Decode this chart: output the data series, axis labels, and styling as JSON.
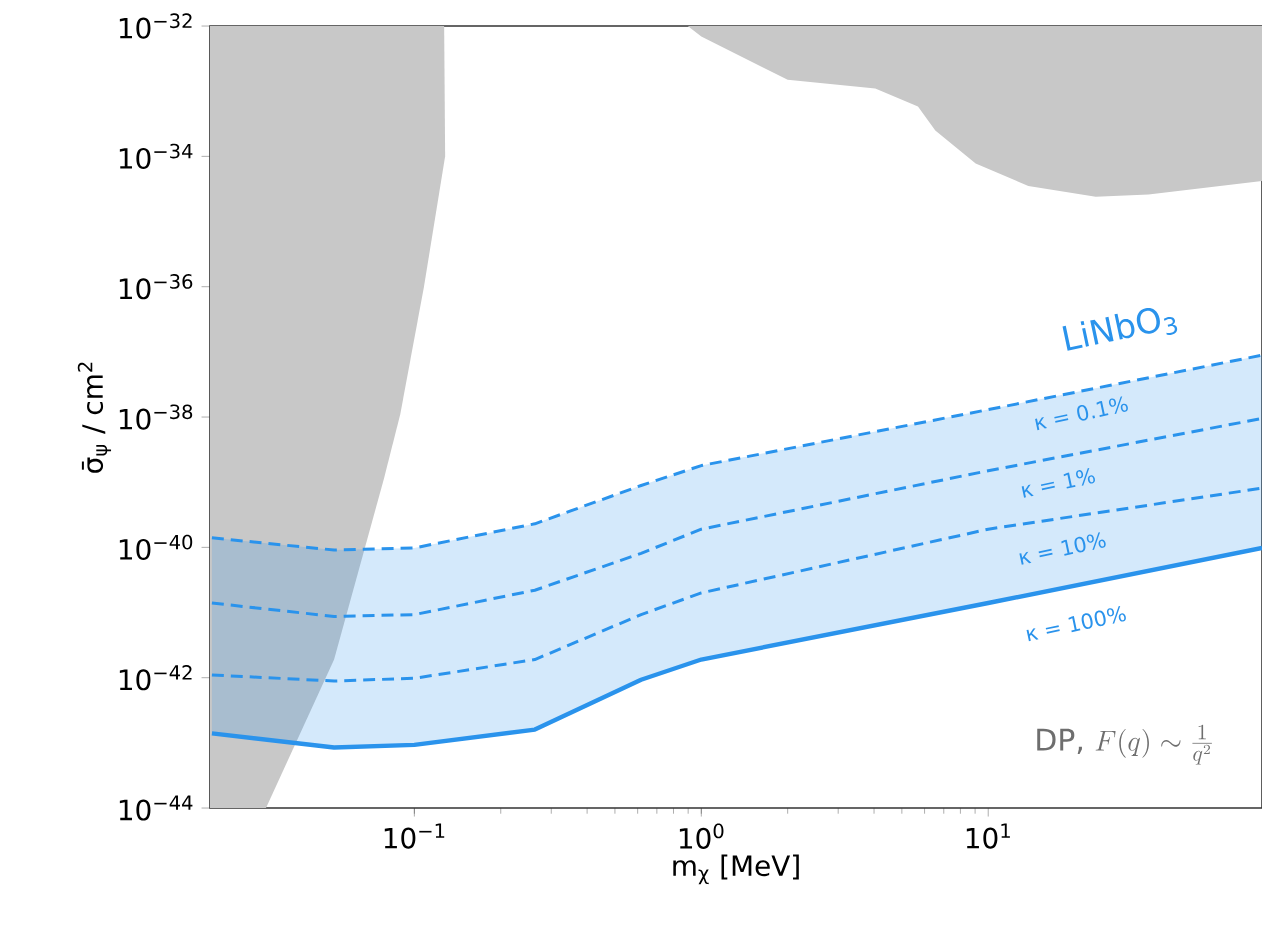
{
  "chart_data": {
    "type": "line",
    "xlabel": "m$_{χ}$ [MeV]",
    "ylabel": "σ̄$_{ψ}$ / cm$^{2}$",
    "log": "xy",
    "xlim": [
      0.0194,
      90
    ],
    "ylim": [
      1e-44,
      1e-32
    ],
    "xticks": [
      {
        "value": 0.1,
        "label": "10$^{−1}$"
      },
      {
        "value": 1,
        "label": "10$^{0}$"
      },
      {
        "value": 10,
        "label": "10$^{1}$"
      }
    ],
    "yticks": [
      {
        "value": 1e-44,
        "label": "10$^{−44}$"
      },
      {
        "value": 1e-42,
        "label": "10$^{−42}$"
      },
      {
        "value": 1e-40,
        "label": "10$^{−40}$"
      },
      {
        "value": 1e-38,
        "label": "10$^{−38}$"
      },
      {
        "value": 1e-36,
        "label": "10$^{−36}$"
      },
      {
        "value": 1e-34,
        "label": "10$^{−34}$"
      },
      {
        "value": 1e-32,
        "label": "10$^{−32}$"
      }
    ],
    "x": [
      0.0197,
      0.0525,
      0.1,
      0.263,
      0.617,
      1,
      10,
      90
    ],
    "series": [
      {
        "name": "κ = 0.1%",
        "color": "#2a93ec",
        "line_style": "dashed",
        "values": [
          1.4e-40,
          9.1e-41,
          9.8e-41,
          2.3e-40,
          8.9e-40,
          1.8e-39,
          1.3e-38,
          8.9e-38
        ]
      },
      {
        "name": "κ = 1%",
        "color": "#2a93ec",
        "line_style": "dashed",
        "values": [
          1.4e-41,
          8.7e-42,
          9.3e-42,
          2.2e-41,
          8.1e-41,
          1.9e-40,
          1.5e-39,
          9.5e-39
        ],
        "lower": [
          1.4e-43,
          8.5e-44,
          9.3e-44,
          1.6e-43,
          9.3e-43,
          1.9e-42,
          1.4e-41,
          9.8e-41
        ],
        "upper": [
          1.4e-40,
          9.1e-41,
          9.8e-41,
          2.3e-40,
          8.9e-40,
          1.8e-39,
          1.3e-38,
          8.9e-38
        ]
      },
      {
        "name": "κ = 10%",
        "color": "#2a93ec",
        "line_style": "dashed",
        "values": [
          1.1e-42,
          8.9e-43,
          9.8e-43,
          1.9e-42,
          9.3e-42,
          2e-41,
          1.9e-40,
          8.1e-40
        ]
      },
      {
        "name": "κ = 100%",
        "color": "#2a93ec",
        "line_style": "solid",
        "values": [
          1.4e-43,
          8.5e-44,
          9.3e-44,
          1.6e-43,
          9.3e-43,
          1.9e-42,
          1.4e-41,
          9.8e-41
        ]
      },
      {
        "type": "area",
        "color": "#c8c8c8",
        "x": [
          0.0194,
          0.0194,
          0.0304,
          0.0525,
          0.0782,
          0.0893,
          0.108,
          0.128,
          0.127
        ],
        "values": [
          1e-32,
          1e-44,
          1e-44,
          1.9e-42,
          1.1e-39,
          1.1e-38,
          1e-36,
          1e-34,
          1e-32
        ]
      },
      {
        "type": "area",
        "color": "#c8c8c8",
        "x": [
          0.897,
          1,
          2,
          4.04,
          5.69,
          6.54,
          9.04,
          13.8,
          23.7,
          36.2,
          90,
          90
        ],
        "values": [
          1e-32,
          6.9e-33,
          1.5e-33,
          1.1e-33,
          5.8e-34,
          2.5e-34,
          7.8e-35,
          3.5e-35,
          2.4e-35,
          2.6e-35,
          4.2e-35,
          1e-32
        ]
      }
    ],
    "annotations": [
      "LiNbO$_{3}$",
      "DP,",
      "F(q) \\sim \\frac{1}{q^{2}}"
    ]
  }
}
